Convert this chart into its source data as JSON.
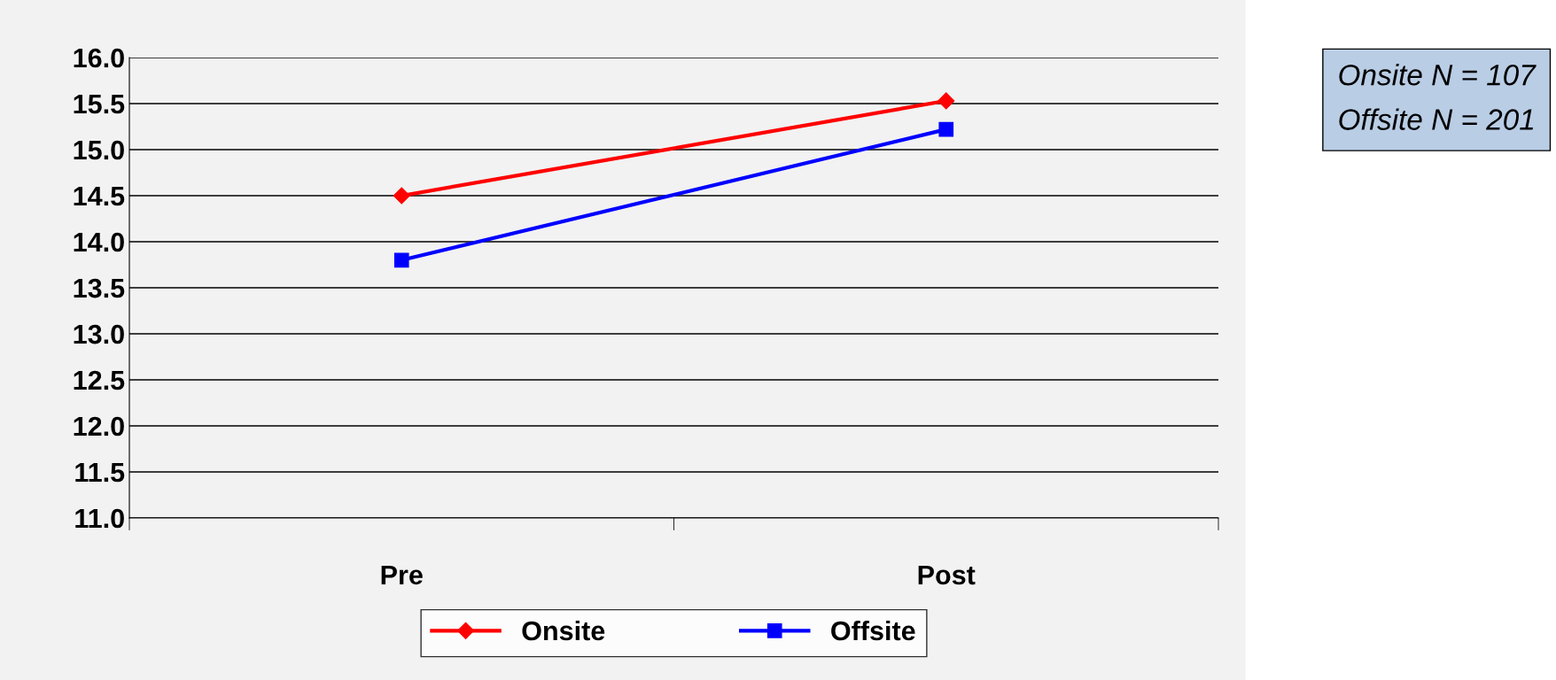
{
  "chart_data": {
    "type": "line",
    "categories": [
      "Pre",
      "Post"
    ],
    "series": [
      {
        "name": "Onsite",
        "color": "#ff0000",
        "values": [
          14.5,
          15.53
        ],
        "marker": "diamond"
      },
      {
        "name": "Offsite",
        "color": "#0000ff",
        "values": [
          13.8,
          15.22
        ],
        "marker": "square"
      }
    ],
    "ylim": [
      11.0,
      16.0
    ],
    "yticks": [
      {
        "value": 11,
        "label": "11.0"
      },
      {
        "value": 11.5,
        "label": "11.5"
      },
      {
        "value": 12,
        "label": "12.0"
      },
      {
        "value": 12.5,
        "label": "12.5"
      },
      {
        "value": 13,
        "label": "13.0"
      },
      {
        "value": 13.5,
        "label": "13.5"
      },
      {
        "value": 14,
        "label": "14.0"
      },
      {
        "value": 14.5,
        "label": "14.5"
      },
      {
        "value": 15,
        "label": "15.0"
      },
      {
        "value": 15.5,
        "label": "15.5"
      },
      {
        "value": 16,
        "label": "16.0"
      }
    ],
    "grid": "y",
    "legend": "bottom",
    "line_style": "solid",
    "annotations": [
      "Onsite N = 107",
      "Offsite N = 201"
    ]
  }
}
